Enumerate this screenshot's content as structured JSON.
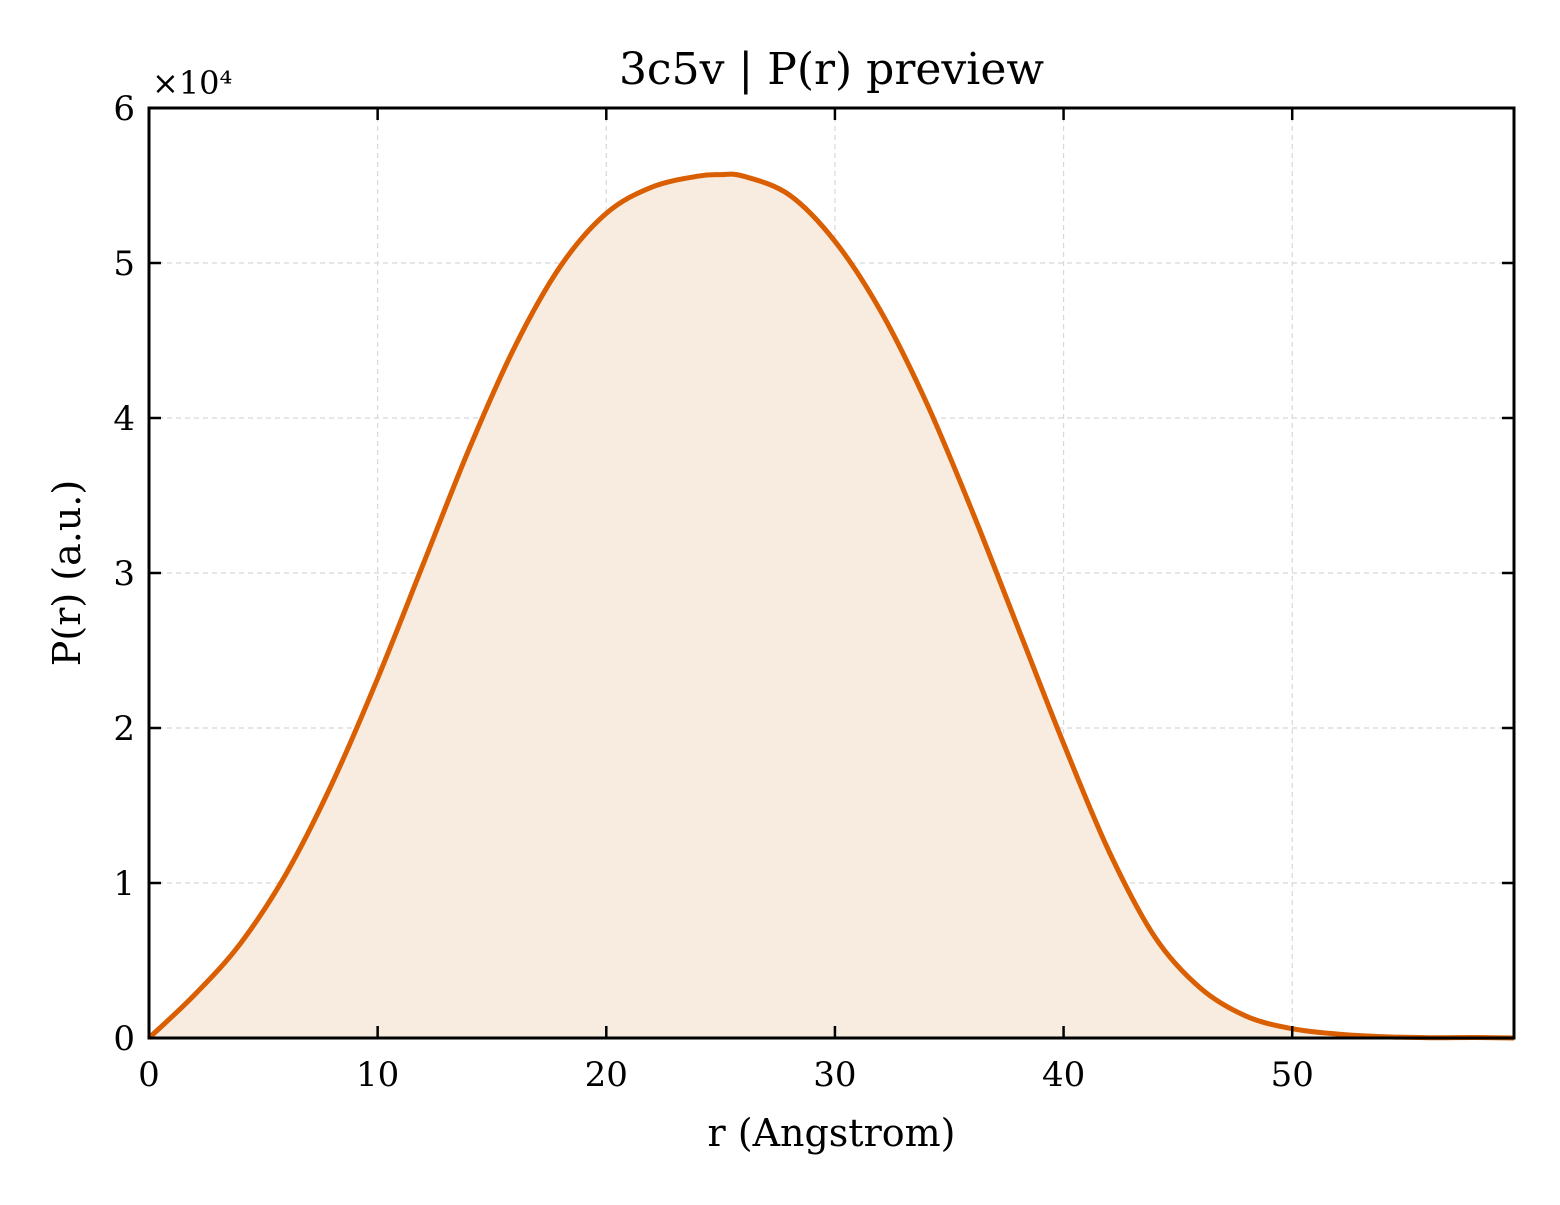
{
  "chart_data": {
    "type": "area",
    "title": "3c5v | P(r) preview",
    "xlabel": "r (Angstrom)",
    "ylabel": "P(r) (a.u.)",
    "y_scale_label": "×10⁴",
    "xlim": [
      0,
      59.7
    ],
    "ylim": [
      0,
      60000
    ],
    "x_ticks": [
      0,
      10,
      20,
      30,
      40,
      50
    ],
    "x_tick_labels": [
      "0",
      "10",
      "20",
      "30",
      "40",
      "50"
    ],
    "y_ticks": [
      0,
      10000,
      20000,
      30000,
      40000,
      50000,
      60000
    ],
    "y_tick_labels": [
      "0",
      "1",
      "2",
      "3",
      "4",
      "5",
      "6"
    ],
    "grid": true,
    "legend": "none",
    "colors": {
      "line": "#d95f02",
      "fill": "#f8ebe0",
      "grid": "#d8d8d8"
    },
    "series": [
      {
        "x": [
          0,
          2,
          4,
          6,
          8,
          10,
          12,
          14,
          16,
          18,
          20,
          22,
          24,
          25,
          26,
          28,
          30,
          32,
          34,
          36,
          38,
          40,
          42,
          44,
          46,
          48,
          50,
          52,
          54,
          56,
          58,
          59.7
        ],
        "y": [
          0,
          2800,
          6100,
          10600,
          16400,
          23200,
          30600,
          38000,
          44600,
          49800,
          53200,
          54900,
          55600,
          55700,
          55600,
          54400,
          51400,
          46900,
          41000,
          34000,
          26500,
          19000,
          12000,
          6500,
          3200,
          1400,
          600,
          250,
          80,
          20,
          30,
          0
        ]
      }
    ]
  }
}
